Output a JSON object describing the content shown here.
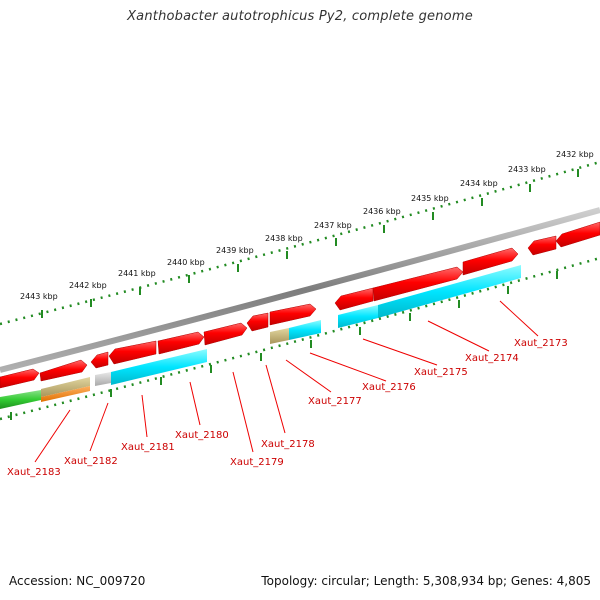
{
  "title": "Xanthobacter autotrophicus Py2, complete genome",
  "footer": {
    "accession": "Accession: NC_009720",
    "topology": "Topology: circular; Length: 5,308,934 bp; Genes: 4,805"
  },
  "kbp_labels": [
    "2443 kbp",
    "2442 kbp",
    "2441 kbp",
    "2440 kbp",
    "2439 kbp",
    "2438 kbp",
    "2437 kbp",
    "2436 kbp",
    "2435 kbp",
    "2434 kbp",
    "2433 kbp",
    "2432 kbp"
  ],
  "gene_labels": [
    "Xaut_2183",
    "Xaut_2182",
    "Xaut_2181",
    "Xaut_2180",
    "Xaut_2179",
    "Xaut_2178",
    "Xaut_2177",
    "Xaut_2176",
    "Xaut_2175",
    "Xaut_2174",
    "Xaut_2173"
  ],
  "colors": {
    "forward_gene": "#ff0000",
    "reverse_gene": "#00e5ff",
    "other_feature": "#33cc33",
    "pseudo_feature": "#c8b46e",
    "rna_feature": "#ff8c00",
    "backbone": "#888888",
    "tick": "#228b22",
    "label": "#cc0000"
  }
}
